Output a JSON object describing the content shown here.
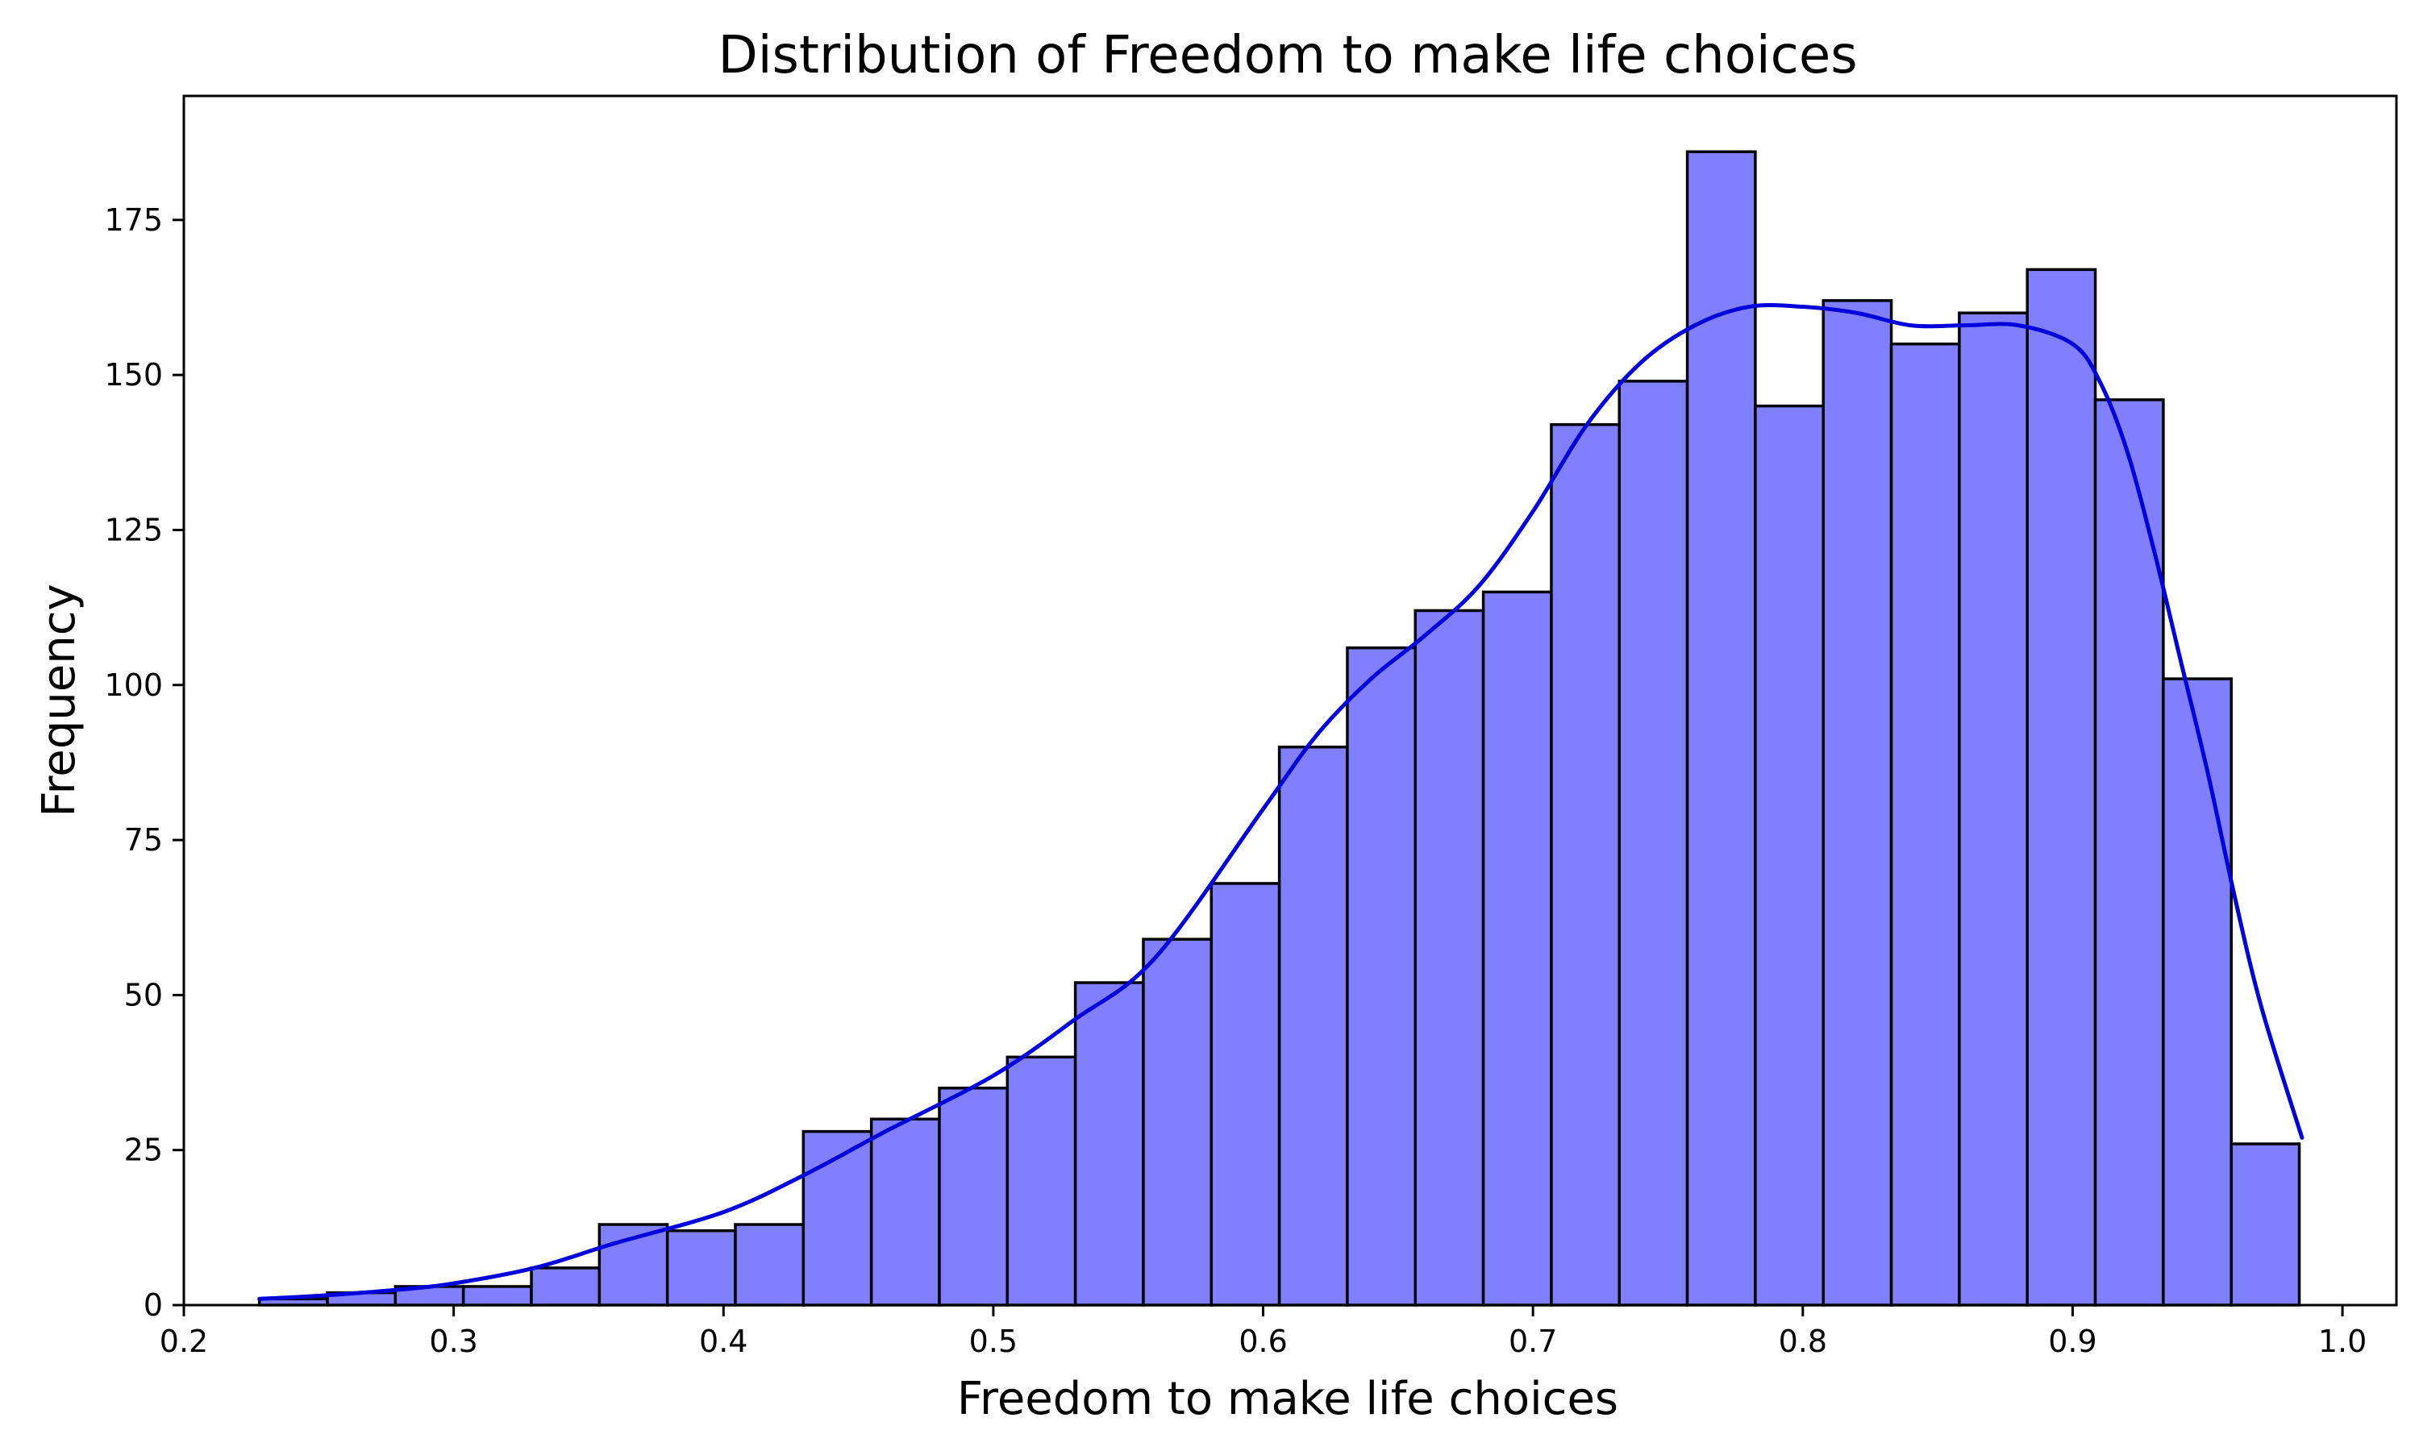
{
  "chart_data": {
    "type": "bar",
    "subtype": "histogram",
    "title": "Distribution of Freedom to make life choices",
    "xlabel": "Freedom to make life choices",
    "ylabel": "Frequency",
    "xlim": [
      0.2,
      1.02
    ],
    "ylim": [
      0,
      195
    ],
    "xticks": [
      "0.2",
      "0.3",
      "0.4",
      "0.5",
      "0.6",
      "0.7",
      "0.8",
      "0.9",
      "1.0"
    ],
    "yticks": [
      "0",
      "25",
      "50",
      "75",
      "100",
      "125",
      "150",
      "175"
    ],
    "bins": {
      "start": 0.228,
      "end": 0.985,
      "width": 0.0252
    },
    "values": [
      1,
      2,
      3,
      3,
      6,
      13,
      12,
      13,
      28,
      30,
      35,
      40,
      52,
      59,
      68,
      90,
      106,
      112,
      115,
      142,
      149,
      186,
      145,
      162,
      155,
      160,
      167,
      146,
      101,
      26
    ],
    "kde": {
      "x": [
        0.228,
        0.25,
        0.28,
        0.3,
        0.33,
        0.36,
        0.4,
        0.43,
        0.46,
        0.5,
        0.53,
        0.56,
        0.6,
        0.62,
        0.64,
        0.66,
        0.68,
        0.7,
        0.72,
        0.74,
        0.76,
        0.78,
        0.8,
        0.82,
        0.84,
        0.86,
        0.88,
        0.9,
        0.91,
        0.92,
        0.93,
        0.94,
        0.95,
        0.96,
        0.97,
        0.985
      ],
      "y": [
        1,
        1.5,
        2.5,
        3.5,
        6,
        10,
        15,
        21,
        28,
        37,
        46,
        56,
        80,
        92,
        101,
        108,
        116,
        128,
        142,
        152,
        158,
        161,
        161,
        160,
        158,
        158,
        158,
        155,
        149,
        138,
        122,
        104,
        86,
        66,
        48,
        27
      ]
    },
    "bar_color": "#8080ff",
    "line_color": "#0000dd",
    "grid": false,
    "legend": "none"
  }
}
